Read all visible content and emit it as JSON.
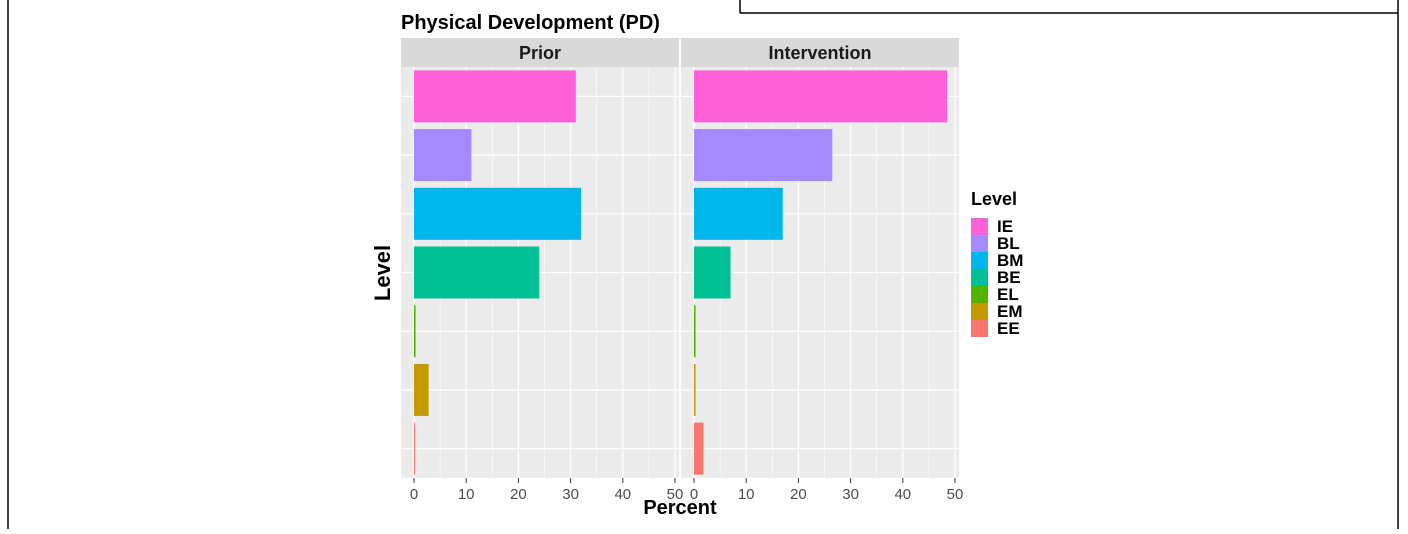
{
  "colors": {
    "IE": "#FF61D8",
    "BL": "#A58AFF",
    "BM": "#00B6EB",
    "BE": "#00C094",
    "EL": "#53B400",
    "EM": "#C49A00",
    "EE": "#F8766D",
    "panel_bg": "#EBEBEB",
    "strip_bg": "#D9D9D9",
    "grid": "#FFFFFF"
  },
  "chart_data": {
    "type": "bar",
    "orientation": "horizontal",
    "title": "Physical Development (PD)",
    "xlabel": "Percent",
    "ylabel": "Level",
    "xlim": [
      0,
      50
    ],
    "xticks": [
      "0",
      "10",
      "20",
      "30",
      "40",
      "50"
    ],
    "grid": true,
    "categories": [
      "IE",
      "BL",
      "BM",
      "BE",
      "EL",
      "EM",
      "EE"
    ],
    "legend": {
      "title": "Level",
      "position": "right",
      "entries": [
        "IE",
        "BL",
        "BM",
        "BE",
        "EL",
        "EM",
        "EE"
      ]
    },
    "facets": [
      {
        "name": "Prior",
        "values": [
          31,
          11,
          32,
          24,
          0.3,
          2.8,
          0.2
        ]
      },
      {
        "name": "Intervention",
        "values": [
          48.5,
          26.5,
          17,
          7,
          0.3,
          0.3,
          1.8
        ]
      }
    ]
  }
}
